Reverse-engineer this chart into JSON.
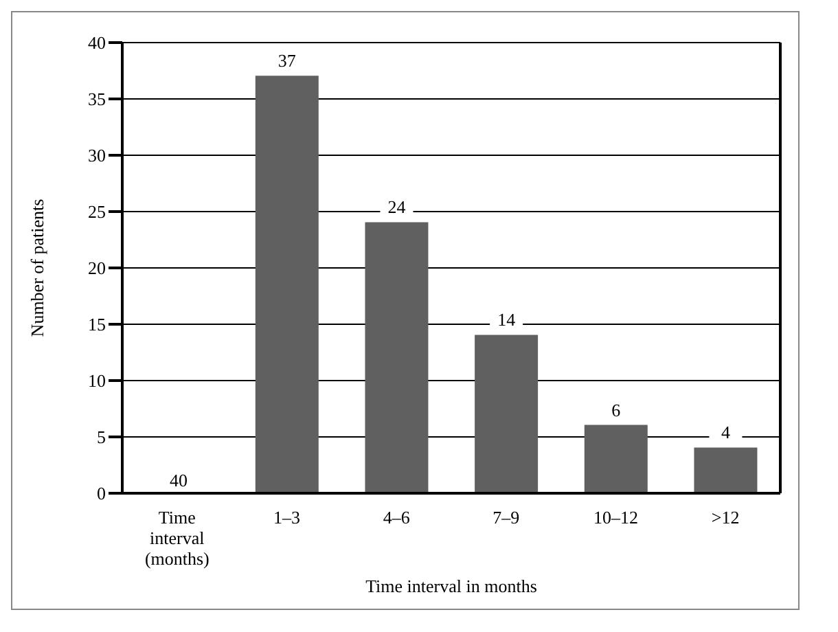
{
  "chart_data": {
    "type": "bar",
    "xlabel": "Time interval in months",
    "ylabel": "Number of patients",
    "categories": [
      "Time interval (months)",
      "1–3",
      "4–6",
      "7–9",
      "10–12",
      ">12"
    ],
    "values": [
      null,
      37,
      24,
      14,
      6,
      4
    ],
    "color": "#606060",
    "ylim": [
      0,
      40
    ],
    "yticks": [
      0,
      5,
      10,
      15,
      20,
      25,
      30,
      35,
      40
    ],
    "grid": "y",
    "data_labels": true,
    "annotations": [
      "40"
    ]
  }
}
